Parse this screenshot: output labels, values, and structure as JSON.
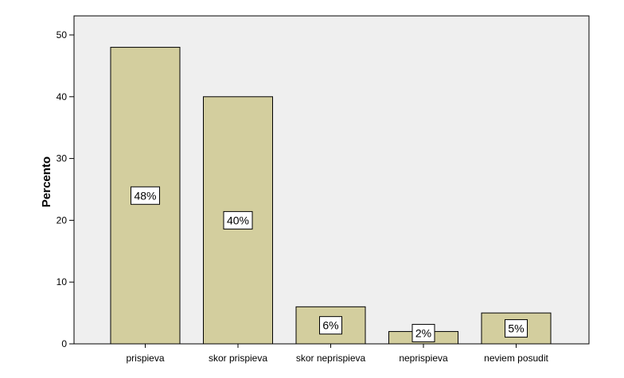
{
  "chart_data": {
    "type": "bar",
    "categories": [
      "prispieva",
      "skor prispieva",
      "skor neprispieva",
      "neprispieva",
      "neviem posudit"
    ],
    "values": [
      48,
      40,
      6,
      2,
      5
    ],
    "data_labels": [
      "48%",
      "40%",
      "6%",
      "2%",
      "5%"
    ],
    "ylabel": "Percento",
    "xlabel": "",
    "ylim": [
      0,
      50
    ],
    "yticks": [
      0,
      10,
      20,
      30,
      40,
      50
    ],
    "grid": false,
    "legend": "none",
    "colors": {
      "bar_fill": "#d3ce9e",
      "plot_background": "#efefef",
      "page_background": "#ffffff",
      "axis": "#000000"
    }
  }
}
